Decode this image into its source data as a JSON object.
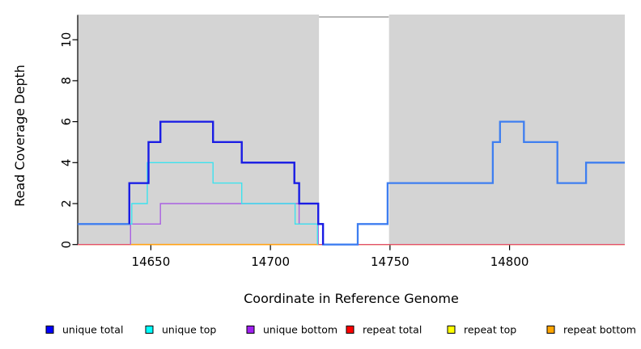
{
  "chart_data": {
    "type": "line",
    "style": "step",
    "title": "",
    "xlabel": "Coordinate in Reference Genome",
    "ylabel": "Read Coverage Depth",
    "xlim": [
      14619.4,
      14848.2
    ],
    "ylim": [
      0,
      11.2
    ],
    "x_ticks": [
      14650,
      14700,
      14750,
      14800
    ],
    "y_ticks": [
      0,
      2,
      4,
      6,
      8,
      10
    ],
    "grid": false,
    "legend_position": "bottom",
    "shaded_regions": [
      {
        "name": "shaded-region-left",
        "x0": 14619.4,
        "x1": 14720.3,
        "color": "#d4d4d4"
      },
      {
        "name": "shaded-region-right",
        "x0": 14749.6,
        "x1": 14848.2,
        "color": "#d4d4d4"
      }
    ],
    "gap_region": {
      "x0": 14720.3,
      "x1": 14749.5,
      "top_border_color": "#8a8a8a"
    },
    "series": [
      {
        "name": "repeat top",
        "slug": "repeat-top",
        "legend_color": "#ffff00",
        "line_color": "#ffff00",
        "line_width": 1.3,
        "points": [
          [
            14619.4,
            0
          ],
          [
            14848.2,
            0
          ]
        ]
      },
      {
        "name": "repeat total",
        "slug": "repeat-total",
        "legend_color": "#ff0000",
        "line_color": "#e1506e",
        "line_width": 1.4,
        "points": [
          [
            14619.4,
            0
          ],
          [
            14848.2,
            0
          ]
        ]
      },
      {
        "name": "repeat bottom",
        "slug": "repeat-bottom",
        "legend_color": "#ffa500",
        "line_color": "#ffa215",
        "line_width": 1.6,
        "points": [
          [
            14641.5,
            0
          ],
          [
            14720.3,
            0
          ]
        ]
      },
      {
        "name": "unique bottom",
        "slug": "unique-bottom",
        "legend_color": "#a020f0",
        "line_color": "#aa60e2",
        "line_width": 1.4,
        "points": [
          [
            14641.5,
            0
          ],
          [
            14641.5,
            1
          ],
          [
            14654,
            1
          ],
          [
            14654,
            2
          ],
          [
            14712,
            2
          ],
          [
            14712,
            1
          ],
          [
            14720,
            1
          ],
          [
            14720,
            0
          ]
        ]
      },
      {
        "name": "unique top",
        "slug": "unique-top",
        "legend_color": "#00ffff",
        "line_color": "#3ce2ee",
        "line_width": 1.4,
        "points": [
          [
            14619.4,
            1
          ],
          [
            14642,
            1
          ],
          [
            14642,
            2
          ],
          [
            14648.5,
            2
          ],
          [
            14648.5,
            4
          ],
          [
            14676,
            4
          ],
          [
            14676,
            3
          ],
          [
            14688,
            3
          ],
          [
            14688,
            2
          ],
          [
            14710.3,
            2
          ],
          [
            14710.3,
            1
          ],
          [
            14719.7,
            1
          ],
          [
            14719.7,
            0
          ]
        ]
      },
      {
        "name": "total",
        "slug": "total",
        "legend_color": null,
        "line_color": "#3e7ef0",
        "line_width": 2.3,
        "points": [
          [
            14619.4,
            1
          ],
          [
            14641,
            1
          ],
          [
            14641,
            3
          ],
          [
            14649,
            3
          ],
          [
            14649,
            5
          ],
          [
            14654,
            5
          ],
          [
            14654,
            6
          ],
          [
            14676,
            6
          ],
          [
            14676,
            5
          ],
          [
            14688,
            5
          ],
          [
            14688,
            4
          ],
          [
            14710,
            4
          ],
          [
            14710,
            3
          ],
          [
            14712,
            3
          ],
          [
            14712,
            2
          ],
          [
            14720,
            2
          ],
          [
            14720,
            1
          ],
          [
            14722,
            1
          ],
          [
            14722,
            0
          ],
          [
            14736.5,
            0
          ],
          [
            14736.5,
            1
          ],
          [
            14749,
            1
          ],
          [
            14749,
            3
          ],
          [
            14793,
            3
          ],
          [
            14793,
            5
          ],
          [
            14796,
            5
          ],
          [
            14796,
            6
          ],
          [
            14806,
            6
          ],
          [
            14806,
            5
          ],
          [
            14820,
            5
          ],
          [
            14820,
            3
          ],
          [
            14832,
            3
          ],
          [
            14832,
            4
          ],
          [
            14848.2,
            4
          ]
        ]
      },
      {
        "name": "unique total",
        "slug": "unique-total",
        "legend_color": "#0000ff",
        "line_color": "#1b1be4",
        "line_width": 2.3,
        "points": [
          [
            14641,
            1
          ],
          [
            14641,
            3
          ],
          [
            14649,
            3
          ],
          [
            14649,
            5
          ],
          [
            14654,
            5
          ],
          [
            14654,
            6
          ],
          [
            14676,
            6
          ],
          [
            14676,
            5
          ],
          [
            14688,
            5
          ],
          [
            14688,
            4
          ],
          [
            14710,
            4
          ],
          [
            14710,
            3
          ],
          [
            14712,
            3
          ],
          [
            14712,
            2
          ],
          [
            14720,
            2
          ],
          [
            14720,
            1
          ],
          [
            14722,
            1
          ],
          [
            14722,
            0
          ]
        ]
      }
    ],
    "legend": [
      {
        "label": "unique total",
        "color": "#0000ff"
      },
      {
        "label": "unique top",
        "color": "#00ffff"
      },
      {
        "label": "unique bottom",
        "color": "#a020f0"
      },
      {
        "label": "repeat total",
        "color": "#ff0000"
      },
      {
        "label": "repeat top",
        "color": "#ffff00"
      },
      {
        "label": "repeat bottom",
        "color": "#ffa500"
      }
    ]
  }
}
